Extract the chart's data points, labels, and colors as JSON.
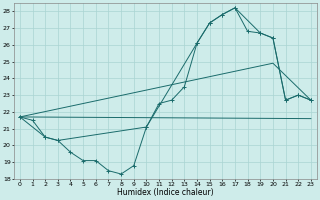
{
  "xlabel": "Humidex (Indice chaleur)",
  "background_color": "#ceecea",
  "grid_color": "#aad4d2",
  "line_color": "#1a6b6b",
  "xlim": [
    -0.5,
    23.5
  ],
  "ylim": [
    18,
    28.5
  ],
  "xticks": [
    0,
    1,
    2,
    3,
    4,
    5,
    6,
    7,
    8,
    9,
    10,
    11,
    12,
    13,
    14,
    15,
    16,
    17,
    18,
    19,
    20,
    21,
    22,
    23
  ],
  "yticks": [
    18,
    19,
    20,
    21,
    22,
    23,
    24,
    25,
    26,
    27,
    28
  ],
  "line1_x": [
    0,
    1,
    2,
    3,
    4,
    5,
    6,
    7,
    8,
    9,
    10,
    11,
    12,
    13,
    14,
    15,
    16,
    17,
    18,
    19,
    20,
    21,
    22,
    23
  ],
  "line1_y": [
    21.7,
    21.5,
    20.5,
    20.3,
    19.6,
    19.1,
    19.1,
    18.5,
    18.3,
    18.8,
    21.1,
    22.5,
    22.7,
    23.5,
    26.1,
    27.3,
    27.8,
    28.2,
    26.8,
    26.7,
    26.4,
    22.7,
    23.0,
    22.7
  ],
  "line2_x": [
    0,
    2,
    3,
    10,
    14,
    15,
    16,
    17,
    19,
    20,
    21,
    22,
    23
  ],
  "line2_y": [
    21.7,
    20.5,
    20.3,
    21.1,
    26.1,
    27.3,
    27.8,
    28.2,
    26.7,
    26.4,
    22.7,
    23.0,
    22.7
  ],
  "line3_x": [
    0,
    23
  ],
  "line3_y": [
    21.7,
    21.6
  ],
  "line4_x": [
    0,
    20,
    23
  ],
  "line4_y": [
    21.7,
    24.9,
    22.7
  ]
}
